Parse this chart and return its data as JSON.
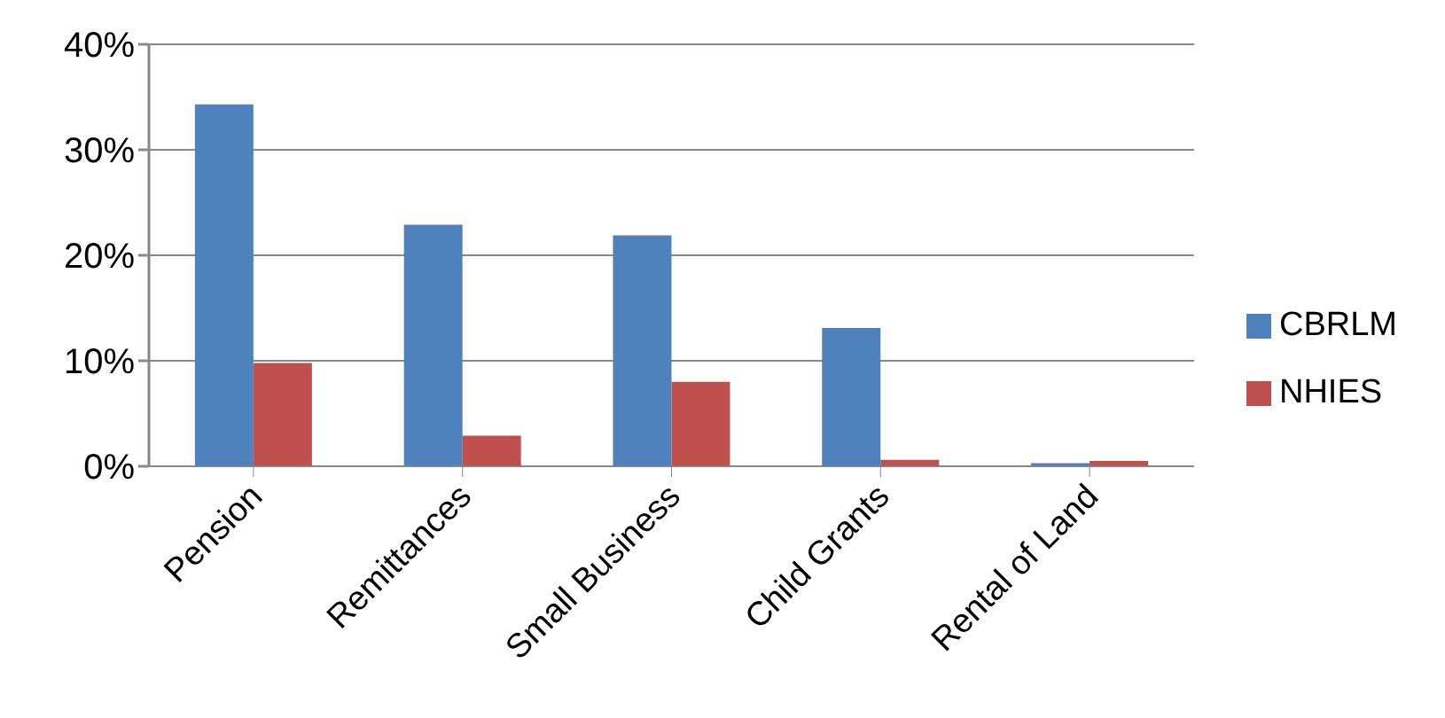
{
  "chart_data": {
    "type": "bar",
    "categories": [
      "Pension",
      "Remittances",
      "Small Business",
      "Child Grants",
      "Rental of Land"
    ],
    "series": [
      {
        "name": "CBRLM",
        "color": "#4f81bd",
        "values": [
          34.3,
          22.9,
          21.9,
          13.1,
          0.3
        ]
      },
      {
        "name": "NHIES",
        "color": "#c0504d",
        "values": [
          9.8,
          2.9,
          8.0,
          0.6,
          0.5
        ]
      }
    ],
    "ylim": [
      0,
      40
    ],
    "yticks": [
      {
        "value": 0,
        "label": "0%"
      },
      {
        "value": 10,
        "label": "10%"
      },
      {
        "value": 20,
        "label": "20%"
      },
      {
        "value": 30,
        "label": "30%"
      },
      {
        "value": 40,
        "label": "40%"
      }
    ],
    "grid": "y",
    "legend": "right"
  }
}
